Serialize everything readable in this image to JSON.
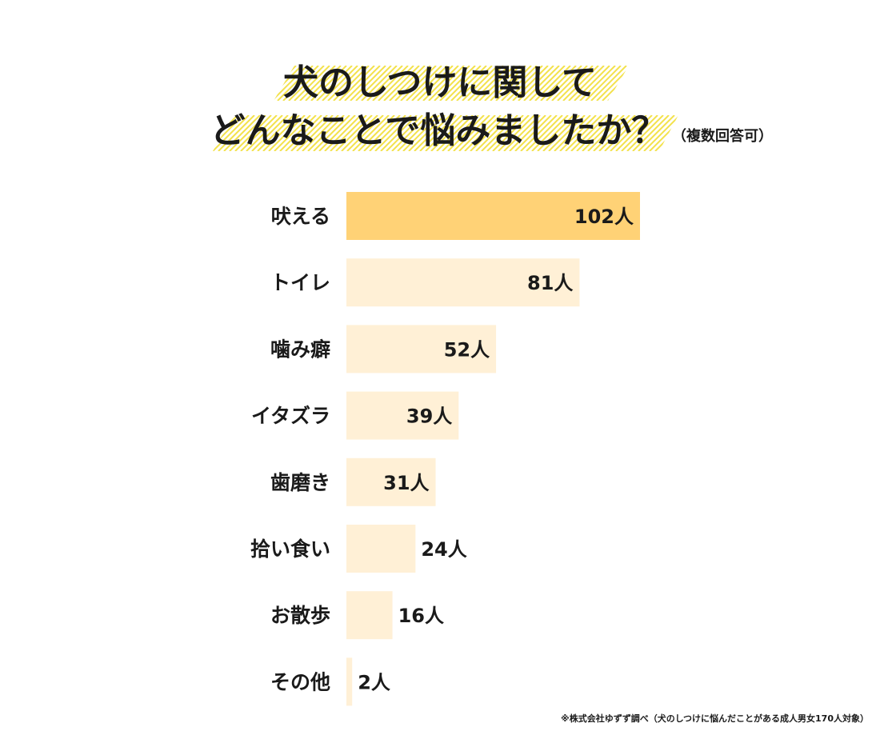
{
  "title_line1": "犬のしつけに関して",
  "title_line2": "どんなことで悩みましたか？",
  "subtitle": "（複数回答可）",
  "footnote": "※株式会社ゆずず調べ（犬のしつけに悩んだことがある成人男女170人対象）",
  "colors": {
    "highlight_bar": "#ffd276",
    "normal_bar": "#fff0d6",
    "hatch": "#f3e24c",
    "text": "#1a1a1a"
  },
  "chart_data": {
    "type": "bar",
    "orientation": "horizontal",
    "title": "犬のしつけに関して どんなことで悩みましたか？",
    "subtitle": "（複数回答可）",
    "unit": "人",
    "categories": [
      "吠える",
      "トイレ",
      "噛み癖",
      "イタズラ",
      "歯磨き",
      "拾い食い",
      "お散歩",
      "その他"
    ],
    "values": [
      102,
      81,
      52,
      39,
      31,
      24,
      16,
      2
    ],
    "value_labels": [
      "102人",
      "81人",
      "52人",
      "39人",
      "31人",
      "24人",
      "16人",
      "2人"
    ],
    "highlight_index": 0,
    "xlim": [
      0,
      102
    ],
    "grid": false,
    "legend": "none"
  }
}
